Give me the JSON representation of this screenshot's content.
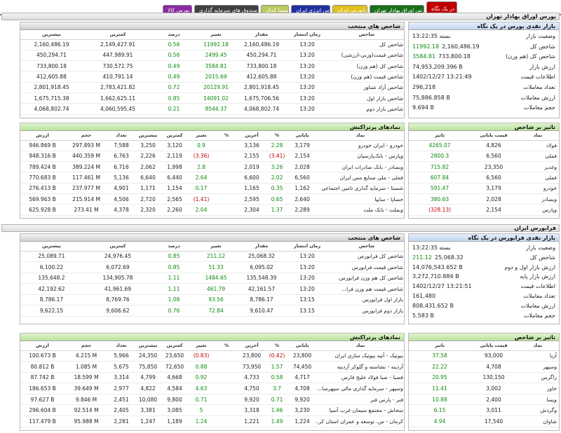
{
  "tabs": [
    {
      "label": "در یک نگاه",
      "bg": "#c00000",
      "fg": "#ffffff",
      "active": true
    },
    {
      "label": "بورس اوراق بهادار تهران",
      "bg": "#1a6e1a",
      "fg": "#ffffff",
      "active": false
    },
    {
      "label": "فرابورس ایران",
      "bg": "#e0c020",
      "fg": "#ffffff",
      "active": false
    },
    {
      "label": "بورس انرژی ایران",
      "bg": "#2030a0",
      "fg": "#ffffff",
      "active": false
    },
    {
      "label": "شستا کدال",
      "bg": "#bcc860",
      "fg": "#ffffff",
      "active": false
    },
    {
      "label": "صندوق های سرمایه گذاری",
      "bg": "#404040",
      "fg": "#ffffff",
      "active": false
    },
    {
      "label": "بورس کالا",
      "bg": "#8a2aa0",
      "fg": "#ffffff",
      "active": false
    }
  ],
  "tse": {
    "title": "بورس اوراق بهادار تهران",
    "indices_title": "شاخص های منتخب",
    "indices_headers": [
      "شاخص",
      "زمان انتشار",
      "مقدار",
      "تغییر",
      "درصد",
      "کمترین",
      "بیشترین"
    ],
    "indices": [
      {
        "name": "شاخص کل",
        "time": "13:20",
        "value": "2,160,486.19",
        "change": "11992.18",
        "pct": "0.56",
        "low": "2,149,427.91",
        "high": "2,160,486.19",
        "dir": "pos"
      },
      {
        "name": "شاخص قیمت(وزنی-ارزشی)",
        "time": "13:20",
        "value": "450,294.71",
        "change": "2499.45",
        "pct": "0.56",
        "low": "447,989.91",
        "high": "450,294.71",
        "dir": "pos"
      },
      {
        "name": "شاخص کل (هم وزن)",
        "time": "13:20",
        "value": "733,800.18",
        "change": "3584.81",
        "pct": "0.49",
        "low": "730,572.75",
        "high": "733,800.18",
        "dir": "pos"
      },
      {
        "name": "شاخص قیمت (هم وزن)",
        "time": "13:20",
        "value": "412,605.88",
        "change": "2015.69",
        "pct": "0.49",
        "low": "410,791.14",
        "high": "412,605.88",
        "dir": "pos"
      },
      {
        "name": "شاخص آزاد شناور",
        "time": "13:20",
        "value": "2,801,918.45",
        "change": "20129.91",
        "pct": "0.72",
        "low": "2,783,421.82",
        "high": "2,801,918.45",
        "dir": "pos"
      },
      {
        "name": "شاخص بازار اول",
        "time": "13:20",
        "value": "1,675,706.56",
        "change": "14091.02",
        "pct": "0.85",
        "low": "1,662,625.11",
        "high": "1,675,715.38",
        "dir": "pos"
      },
      {
        "name": "شاخص بازار دوم",
        "time": "13:20",
        "value": "4,068,802.74",
        "change": "8544.37",
        "pct": "0.21",
        "low": "4,060,595.45",
        "high": "4,068,802.74",
        "dir": "pos"
      }
    ],
    "summary_title": "بازار نقدی بورس در یک نگاه",
    "summary": [
      {
        "label": "وضعیت بازار",
        "value": "بسته 13:22:35",
        "dir": ""
      },
      {
        "label": "شاخص کل",
        "value": "2,160,486.19",
        "extra": "11992.18",
        "dir": "pos"
      },
      {
        "label": "شاخص کل (هم وزن)",
        "value": "733,800.18",
        "extra": "3584.81",
        "dir": "pos"
      },
      {
        "label": "ارزش بازار",
        "value": "74,953,209.396 B",
        "dir": ""
      },
      {
        "label": "اطلاعات قیمت",
        "value": "1402/12/27 13:21:49",
        "dir": ""
      },
      {
        "label": "تعداد معاملات",
        "value": "296,218",
        "dir": ""
      },
      {
        "label": "ارزش معاملات",
        "value": "75,886.858 B",
        "dir": ""
      },
      {
        "label": "حجم معاملات",
        "value": "9.694 B",
        "dir": ""
      }
    ],
    "symbols_title": "نمادهای پرتراکنش",
    "symbols_headers": [
      "نماد",
      "پایانی",
      "%",
      "آخرین",
      "%",
      "تغییر",
      "کمترین",
      "بیشترین",
      "تعداد",
      "حجم",
      "ارزش"
    ],
    "symbols": [
      {
        "name": "خودرو - ایران خودرو",
        "close": "3,179",
        "cpct": "2.28",
        "last": "3,136",
        "lpct": "0.9",
        "chg": "0.9",
        "low": "3,120",
        "high": "3,250",
        "count": "7,588",
        "vol": "297.893 M",
        "val": "946.869 B",
        "cdir": "pos",
        "ldir": "pos"
      },
      {
        "name": "وپارس - بانک‌پارسیان",
        "close": "2,154",
        "cpct": "(3.41)",
        "last": "2,155",
        "chg": "(3.36)",
        "low": "2,119",
        "high": "2,226",
        "count": "6,763",
        "vol": "440.359 M",
        "val": "948.316 B",
        "cdir": "neg",
        "ldir": "neg"
      },
      {
        "name": "وبصادر - بانک صادرات ایران",
        "close": "2,028",
        "cpct": "3.26",
        "last": "2,019",
        "chg": "2.8",
        "low": "1,998",
        "high": "2,062",
        "count": "6,716",
        "vol": "389.224 M",
        "val": "789.424 B",
        "cdir": "pos",
        "ldir": "pos"
      },
      {
        "name": "فملی - ملی صنایع مس ایران",
        "close": "6,560",
        "cpct": "2.02",
        "last": "6,600",
        "chg": "2.64",
        "low": "6,440",
        "high": "6,640",
        "count": "5,136",
        "vol": "117.461 M",
        "val": "770.683 B",
        "cdir": "pos",
        "ldir": "pos"
      },
      {
        "name": "شستا - سرمایه گذاری تامین اجتماعی",
        "close": "1,162",
        "cpct": "0.35",
        "last": "1,165",
        "chg": "0.17",
        "low": "1,154",
        "high": "1,171",
        "count": "4,901",
        "vol": "237.977 M",
        "val": "276.413 B",
        "cdir": "pos",
        "ldir": "pos"
      },
      {
        "name": "خساپا - سایپا",
        "close": "2,640",
        "cpct": "0.65",
        "last": "2,595",
        "chg": "(1.41)",
        "low": "2,565",
        "high": "2,720",
        "count": "4,506",
        "vol": "215.914 M",
        "val": "569.963 B",
        "cdir": "pos",
        "ldir": "neg"
      },
      {
        "name": "وبملت - بانک ملت",
        "close": "2,289",
        "cpct": "1.37",
        "last": "2,304",
        "chg": "2.04",
        "low": "2,260",
        "high": "2,320",
        "count": "4,378",
        "vol": "273.41 M",
        "val": "625.928 B",
        "cdir": "pos",
        "ldir": "pos"
      }
    ],
    "impact_title": "تاثیر بر شاخص",
    "impact_headers": [
      "نماد",
      "قیمت پایانی",
      "تاثیر"
    ],
    "impact": [
      {
        "name": "فولاد",
        "price": "4,826",
        "effect": "4265.07",
        "dir": "pos"
      },
      {
        "name": "فملی",
        "price": "6,560",
        "effect": "2800.3",
        "dir": "pos"
      },
      {
        "name": "وغدیر",
        "price": "23,350",
        "effect": "715.82",
        "dir": "pos"
      },
      {
        "name": "فملی",
        "price": "6,560",
        "effect": "607.84",
        "dir": "pos"
      },
      {
        "name": "خودرو",
        "price": "3,179",
        "effect": "591.47",
        "dir": "pos"
      },
      {
        "name": "وبصادر",
        "price": "2,028",
        "effect": "380.63",
        "dir": "pos"
      },
      {
        "name": "وپارس",
        "price": "2,154",
        "effect": "(328.13)",
        "dir": "neg"
      }
    ]
  },
  "ifb": {
    "title": "فرابورس ایران",
    "indices_title": "شاخص های منتخب",
    "indices_headers": [
      "شاخص",
      "زمان انتشار",
      "مقدار",
      "تغییر",
      "درصد",
      "کمترین",
      "بیشترین"
    ],
    "indices": [
      {
        "name": "شاخص کل فرابورس",
        "time": "13:20",
        "value": "25,068.32",
        "change": "211.12",
        "pct": "0.85",
        "low": "24,976.45",
        "high": "25,089.71",
        "dir": "pos"
      },
      {
        "name": "شاخص قیمت فرابورس",
        "time": "13:20",
        "value": "6,095.02",
        "change": "51.33",
        "pct": "0.85",
        "low": "6,072.69",
        "high": "6,100.22",
        "dir": "pos"
      },
      {
        "name": "شاخص کل هم وزن فرابورس",
        "time": "13:20",
        "value": "135,548.39",
        "change": "1484.65",
        "pct": "1.11",
        "low": "134,905.78",
        "high": "135,648.2",
        "dir": "pos"
      },
      {
        "name": "شاخص قیمت هم وزن فرا...",
        "time": "13:20",
        "value": "42,161.57",
        "change": "461.79",
        "pct": "1.11",
        "low": "41,961.69",
        "high": "42,192.62",
        "dir": "pos"
      },
      {
        "name": "بازار اول فرابورس",
        "time": "13:15",
        "value": "8,786.17",
        "change": "93.56",
        "pct": "1.08",
        "low": "8,769.76",
        "high": "8,786.17",
        "dir": "pos"
      },
      {
        "name": "بازار دوم فرابورس",
        "time": "13:15",
        "value": "9,610.47",
        "change": "72.84",
        "pct": "0.76",
        "low": "9,606.62",
        "high": "9,622.15",
        "dir": "pos"
      }
    ],
    "summary_title": "بازار نقدی فرابورس در یک نگاه",
    "summary": [
      {
        "label": "وضعیت بازار",
        "value": "بسته 13:22:35",
        "dir": ""
      },
      {
        "label": "شاخص کل",
        "value": "25,068.32",
        "extra": "211.12",
        "dir": "pos"
      },
      {
        "label": "ارزش بازار اول و دوم",
        "value": "14,076,543.652 B",
        "dir": ""
      },
      {
        "label": "ارزش بازار پایه",
        "value": "3,272,710.884 B",
        "dir": ""
      },
      {
        "label": "اطلاعات قیمت",
        "value": "1402/12/27 13:21:51",
        "dir": ""
      },
      {
        "label": "تعداد معاملات",
        "value": "161,480",
        "dir": ""
      },
      {
        "label": "ارزش معاملات",
        "value": "808,431.652 B",
        "dir": ""
      },
      {
        "label": "حجم معاملات",
        "value": "5.583 B",
        "dir": ""
      }
    ],
    "symbols_title": "نمادهای پرتراکنش",
    "symbols_headers": [
      "نماد",
      "پایانی",
      "%",
      "آخرین",
      "%",
      "تغییر",
      "کمترین",
      "بیشترین",
      "تعداد",
      "حجم",
      "ارزش"
    ],
    "symbols": [
      {
        "name": "بیوتیک - آتیه بیوتیک سازی ایران",
        "close": "23,800",
        "cpct": "(0.42)",
        "last": "23,800",
        "chg": "(0.83)",
        "low": "23,650",
        "high": "24,350",
        "count": "5,966",
        "vol": "4.215 M",
        "val": "100.673 B",
        "cdir": "neg",
        "ldir": "neg"
      },
      {
        "name": "آردینه - نشاسته و گلوکز آردینه",
        "close": "74,450",
        "cpct": "1.57",
        "last": "73,950",
        "chg": "0.88",
        "low": "72,650",
        "high": "75,850",
        "count": "5,675",
        "vol": "1.085 M",
        "val": "80.812 B",
        "cdir": "pos",
        "ldir": "pos"
      },
      {
        "name": "فصبا - صبا فولاد خلیج فارس",
        "close": "4,717",
        "cpct": "0.58",
        "last": "4,733",
        "chg": "0.92",
        "low": "4,668",
        "high": "4,799",
        "count": "3,314",
        "vol": "18.599 M",
        "val": "87.742 B",
        "cdir": "pos",
        "ldir": "pos"
      },
      {
        "name": "وسپهر - سرمایه گذاری مالی سپهرصا...",
        "close": "4,708",
        "cpct": "3.7",
        "last": "4,750",
        "chg": "4.63",
        "low": "4,584",
        "high": "4,822",
        "count": "2,977",
        "vol": "39.649 M",
        "val": "186.653 B",
        "cdir": "pos",
        "ldir": "pos"
      },
      {
        "name": "فنر - پارس فنر",
        "close": "9,920",
        "cpct": "0.71",
        "last": "9,920",
        "chg": "0.71",
        "low": "9,800",
        "high": "10,080",
        "count": "2,451",
        "vol": "9.846 M",
        "val": "97.627 B",
        "cdir": "pos",
        "ldir": "pos"
      },
      {
        "name": "سخاش - مجتمع سیمان غرب آسیا",
        "close": "3,230",
        "cpct": "1.46",
        "last": "3,318",
        "chg": "5",
        "low": "3,085",
        "high": "3,381",
        "count": "2,405",
        "vol": "92.514 M",
        "val": "296.604 B",
        "cdir": "pos",
        "ldir": "pos"
      },
      {
        "name": "کرمان - س. توسعه و عمران استان کر...",
        "close": "1,224",
        "cpct": "1.49",
        "last": "1,221",
        "chg": "1.24",
        "low": "1,189",
        "high": "1,247",
        "count": "2,281",
        "vol": "95.988 M",
        "val": "117.479 B",
        "cdir": "pos",
        "ldir": "pos"
      }
    ],
    "impact_title": "تاثیر بر شاخص",
    "impact_headers": [
      "نماد",
      "قیمت پایانی",
      "تاثیر"
    ],
    "impact": [
      {
        "name": "آریا",
        "price": "93,000",
        "effect": "37.58",
        "dir": "pos"
      },
      {
        "name": "وسپهر",
        "price": "4,708",
        "effect": "22.22",
        "dir": "pos"
      },
      {
        "name": "زاگرس",
        "price": "130,150",
        "effect": "20.95",
        "dir": "pos"
      },
      {
        "name": "خاور",
        "price": "3,002",
        "effect": "11.41",
        "dir": "pos"
      },
      {
        "name": "ویسا",
        "price": "2,400",
        "effect": "10.88",
        "dir": "pos"
      },
      {
        "name": "وگردش",
        "price": "3,011",
        "effect": "6.15",
        "dir": "pos"
      },
      {
        "name": "شاوان",
        "price": "17,540",
        "effect": "4.94",
        "dir": "pos"
      }
    ]
  }
}
